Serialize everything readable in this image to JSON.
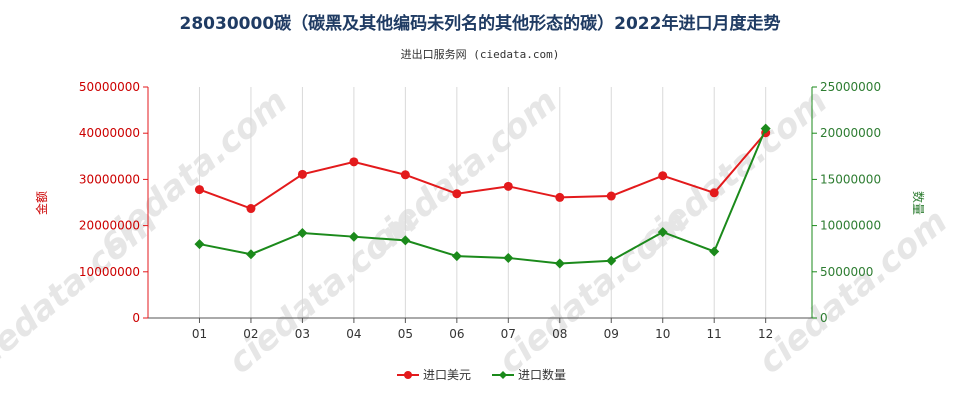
{
  "chart_data": {
    "type": "line",
    "title": "28030000碳（碳黑及其他编码未列名的其他形态的碳）2022年进口月度走势",
    "subtitle": "进出口服务网 (ciedata.com)",
    "categories": [
      "01",
      "02",
      "03",
      "04",
      "05",
      "06",
      "07",
      "08",
      "09",
      "10",
      "11",
      "12"
    ],
    "y_left": {
      "label": "金额",
      "ylim": [
        0,
        50000000
      ],
      "ticks": [
        "0",
        "10000000",
        "20000000",
        "30000000",
        "40000000",
        "50000000"
      ],
      "color": "#e31a1c"
    },
    "y_right": {
      "label": "数量",
      "ylim": [
        0,
        25000000
      ],
      "ticks": [
        "0",
        "5000000",
        "10000000",
        "15000000",
        "20000000",
        "25000000"
      ],
      "color": "#1b8a1b"
    },
    "series": [
      {
        "name": "进口美元",
        "axis": "left",
        "color": "#e31a1c",
        "marker": "circle",
        "values": [
          27800000,
          23700000,
          31100000,
          33800000,
          31000000,
          26900000,
          28500000,
          26100000,
          26400000,
          30800000,
          27100000,
          40100000
        ]
      },
      {
        "name": "进口数量",
        "axis": "right",
        "color": "#1b8a1b",
        "marker": "diamond",
        "values": [
          8000000,
          6900000,
          9200000,
          8800000,
          8400000,
          6700000,
          6500000,
          5900000,
          6200000,
          9300000,
          7200000,
          20500000
        ]
      }
    ],
    "grid": "vertical",
    "legend_position": "bottom-center"
  }
}
